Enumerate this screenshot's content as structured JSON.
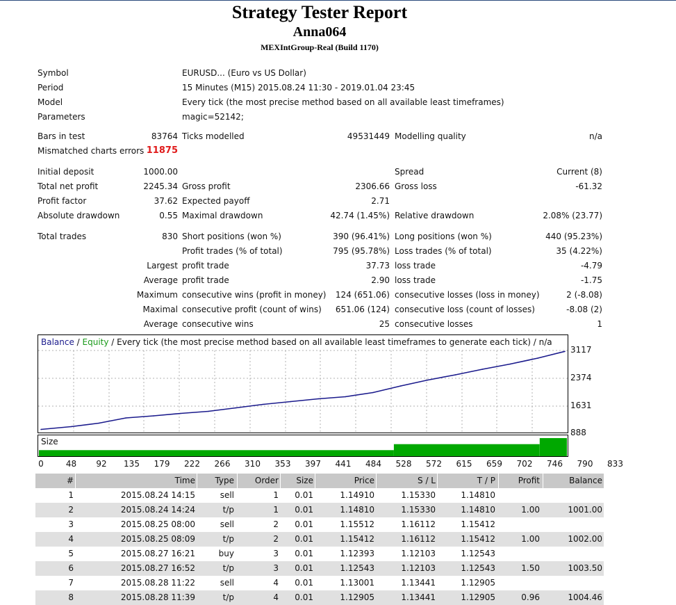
{
  "header": {
    "title": "Strategy Tester Report",
    "account": "Anna064",
    "server": "MEXIntGroup-Real (Build 1170)"
  },
  "settings": {
    "symbol_label": "Symbol",
    "symbol_value": "EURUSD... (Euro vs US Dollar)",
    "period_label": "Period",
    "period_value": "15 Minutes (M15) 2015.08.24 11:30 - 2019.01.04 23:45",
    "model_label": "Model",
    "model_value": "Every tick (the most precise method based on all available least timeframes)",
    "parameters_label": "Parameters",
    "parameters_value": "magic=52142;"
  },
  "modelling": {
    "bars_label": "Bars in test",
    "bars_value": "83764",
    "ticks_label": "Ticks modelled",
    "ticks_value": "49531449",
    "quality_label": "Modelling quality",
    "quality_value": "n/a",
    "mismatch_label": "Mismatched charts errors",
    "mismatch_value": "11875"
  },
  "results": {
    "initial_deposit_label": "Initial deposit",
    "initial_deposit_value": "1000.00",
    "spread_label": "Spread",
    "spread_value": "Current (8)",
    "net_profit_label": "Total net profit",
    "net_profit_value": "2245.34",
    "gross_profit_label": "Gross profit",
    "gross_profit_value": "2306.66",
    "gross_loss_label": "Gross loss",
    "gross_loss_value": "-61.32",
    "profit_factor_label": "Profit factor",
    "profit_factor_value": "37.62",
    "expected_payoff_label": "Expected payoff",
    "expected_payoff_value": "2.71",
    "abs_drawdown_label": "Absolute drawdown",
    "abs_drawdown_value": "0.55",
    "max_drawdown_label": "Maximal drawdown",
    "max_drawdown_value": "42.74 (1.45%)",
    "rel_drawdown_label": "Relative drawdown",
    "rel_drawdown_value": "2.08% (23.77)"
  },
  "trades": {
    "total_label": "Total trades",
    "total_value": "830",
    "short_label": "Short positions (won %)",
    "short_value": "390 (96.41%)",
    "long_label": "Long positions (won %)",
    "long_value": "440 (95.23%)",
    "profit_trades_label": "Profit trades (% of total)",
    "profit_trades_value": "795 (95.78%)",
    "loss_trades_label": "Loss trades (% of total)",
    "loss_trades_value": "35 (4.22%)",
    "largest_label": "Largest",
    "largest_profit_label": "profit trade",
    "largest_profit_value": "37.73",
    "largest_loss_label": "loss trade",
    "largest_loss_value": "-4.79",
    "average_label": "Average",
    "average_profit_label": "profit trade",
    "average_profit_value": "2.90",
    "average_loss_label": "loss trade",
    "average_loss_value": "-1.75",
    "maximum_label": "Maximum",
    "max_cons_wins_label": "consecutive wins (profit in money)",
    "max_cons_wins_value": "124 (651.06)",
    "max_cons_losses_label": "consecutive losses (loss in money)",
    "max_cons_losses_value": "2 (-8.08)",
    "maximal_label": "Maximal",
    "maximal_cons_profit_label": "consecutive profit (count of wins)",
    "maximal_cons_profit_value": "651.06 (124)",
    "maximal_cons_loss_label": "consecutive loss (count of losses)",
    "maximal_cons_loss_value": "-8.08 (2)",
    "avg_cons_label": "Average",
    "avg_cons_wins_label": "consecutive wins",
    "avg_cons_wins_value": "25",
    "avg_cons_losses_label": "consecutive losses",
    "avg_cons_losses_value": "1"
  },
  "chart": {
    "legend_balance": "Balance",
    "legend_sep1": " / ",
    "legend_equity": "Equity",
    "legend_rest": " / Every tick (the most precise method based on all available least timeframes to generate each tick) / n/a",
    "size_label": "Size",
    "colors": {
      "balance": "#1a1a8c",
      "equity": "#1a9a1a",
      "size": "#00a800",
      "grid": "#b0b0b0"
    }
  },
  "chart_data": {
    "type": "line",
    "series": [
      {
        "name": "Balance",
        "x": [
          0,
          48,
          92,
          135,
          179,
          222,
          266,
          310,
          353,
          397,
          441,
          484,
          528,
          572,
          615,
          659,
          702,
          746,
          790,
          833
        ],
        "values": [
          1000,
          1080,
          1180,
          1330,
          1390,
          1460,
          1520,
          1620,
          1720,
          1800,
          1880,
          1940,
          2060,
          2250,
          2420,
          2570,
          2730,
          2880,
          3050,
          3245
        ]
      }
    ],
    "y_ticks": [
      "3117",
      "2374",
      "1631",
      "888"
    ],
    "x_ticks": [
      "0",
      "48",
      "92",
      "135",
      "179",
      "222",
      "266",
      "310",
      "353",
      "397",
      "441",
      "484",
      "528",
      "572",
      "615",
      "659",
      "702",
      "746",
      "790",
      "833"
    ],
    "size_steps": [
      {
        "from": 0,
        "to": 560,
        "size": 0.01
      },
      {
        "from": 560,
        "to": 790,
        "size": 0.02
      },
      {
        "from": 790,
        "to": 833,
        "size": 0.03
      }
    ],
    "grid": true
  },
  "table": {
    "headers": [
      "#",
      "Time",
      "Type",
      "Order",
      "Size",
      "Price",
      "S / L",
      "T / P",
      "Profit",
      "Balance"
    ],
    "rows": [
      [
        "1",
        "2015.08.24 14:15",
        "sell",
        "1",
        "0.01",
        "1.14910",
        "1.15330",
        "1.14810",
        "",
        ""
      ],
      [
        "2",
        "2015.08.24 14:24",
        "t/p",
        "1",
        "0.01",
        "1.14810",
        "1.15330",
        "1.14810",
        "1.00",
        "1001.00"
      ],
      [
        "3",
        "2015.08.25 08:00",
        "sell",
        "2",
        "0.01",
        "1.15512",
        "1.16112",
        "1.15412",
        "",
        ""
      ],
      [
        "4",
        "2015.08.25 08:09",
        "t/p",
        "2",
        "0.01",
        "1.15412",
        "1.16112",
        "1.15412",
        "1.00",
        "1002.00"
      ],
      [
        "5",
        "2015.08.27 16:21",
        "buy",
        "3",
        "0.01",
        "1.12393",
        "1.12103",
        "1.12543",
        "",
        ""
      ],
      [
        "6",
        "2015.08.27 16:52",
        "t/p",
        "3",
        "0.01",
        "1.12543",
        "1.12103",
        "1.12543",
        "1.50",
        "1003.50"
      ],
      [
        "7",
        "2015.08.28 11:22",
        "sell",
        "4",
        "0.01",
        "1.13001",
        "1.13441",
        "1.12905",
        "",
        ""
      ],
      [
        "8",
        "2015.08.28 11:39",
        "t/p",
        "4",
        "0.01",
        "1.12905",
        "1.13441",
        "1.12905",
        "0.96",
        "1004.46"
      ]
    ]
  }
}
